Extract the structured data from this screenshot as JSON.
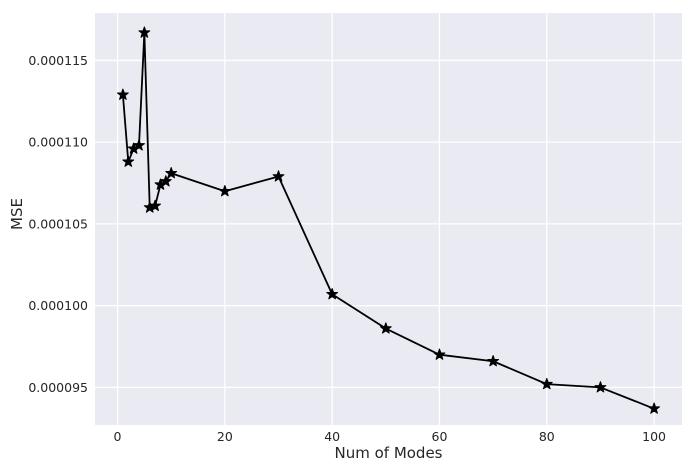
{
  "chart_data": {
    "type": "line",
    "title": "",
    "xlabel": "Num of Modes",
    "ylabel": "MSE",
    "x": [
      1,
      2,
      3,
      4,
      5,
      6,
      7,
      8,
      9,
      10,
      20,
      30,
      40,
      50,
      60,
      70,
      80,
      90,
      100
    ],
    "y": [
      0.0001129,
      0.0001088,
      0.0001096,
      0.0001098,
      0.0001167,
      0.000106,
      0.0001061,
      0.0001074,
      0.0001076,
      0.0001081,
      0.000107,
      0.0001079,
      0.0001007,
      9.86e-05,
      9.7e-05,
      9.66e-05,
      9.52e-05,
      9.5e-05,
      9.37e-05
    ],
    "xlim": [
      -4.2,
      105.2
    ],
    "ylim": [
      9.27e-05,
      0.0001179
    ],
    "xticks": {
      "values": [
        0,
        20,
        40,
        60,
        80,
        100
      ],
      "labels": [
        "0",
        "20",
        "40",
        "60",
        "80",
        "100"
      ]
    },
    "yticks": {
      "values": [
        9.5e-05,
        0.0001,
        0.000105,
        0.00011,
        0.000115
      ],
      "labels": [
        "0.000095",
        "0.000100",
        "0.000105",
        "0.000110",
        "0.000115"
      ]
    },
    "grid": true,
    "legend": "none",
    "marker": "star",
    "style": {
      "plot_bg": "#eaeaf2",
      "grid_color": "#ffffff",
      "line_color": "#000000",
      "marker_color": "#000000",
      "text_color": "#262626"
    }
  }
}
